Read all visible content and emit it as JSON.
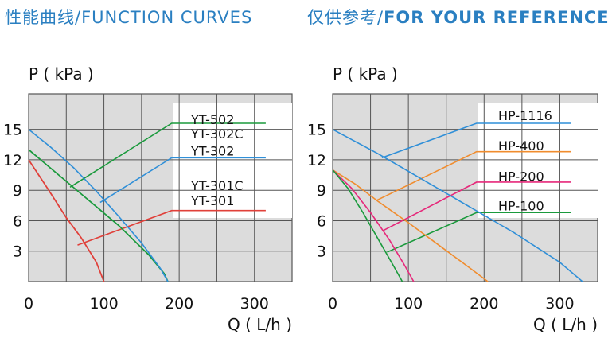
{
  "headers": {
    "left": {
      "cn": "性能曲线/",
      "en": "FUNCTION CURVES"
    },
    "right": {
      "cn": "仅供参考/",
      "en": "FOR YOUR REFERENCE"
    }
  },
  "colors": {
    "panel_bg": "#dcdcdc",
    "grid": "#555555",
    "header": "#2a7fc1"
  },
  "chart_data": [
    {
      "type": "line",
      "ylabel": "P ( kPa )",
      "xlabel": "Q ( L/h )",
      "xlim": [
        0,
        350
      ],
      "ylim": [
        0,
        18.5
      ],
      "xticks": [
        0,
        100,
        200,
        300
      ],
      "yticks": [
        3,
        6,
        9,
        12,
        15
      ],
      "grid": true,
      "series": [
        {
          "name": "YT-502",
          "color": "#1a9a3c",
          "points": [
            [
              0,
              13
            ],
            [
              40,
              10.5
            ],
            [
              80,
              8
            ],
            [
              120,
              5.5
            ],
            [
              160,
              2.6
            ],
            [
              180,
              0.8
            ],
            [
              185,
              0
            ]
          ],
          "label_y": 16.0
        },
        {
          "name": "YT-302C",
          "color": "#1a9a3c",
          "points": [
            [
              0,
              13
            ],
            [
              40,
              10.5
            ],
            [
              80,
              8
            ],
            [
              120,
              5.5
            ],
            [
              160,
              2.6
            ],
            [
              180,
              0.8
            ],
            [
              185,
              0
            ]
          ],
          "label_y": 14.6
        },
        {
          "name": "YT-302",
          "color": "#2f8fd8",
          "points": [
            [
              0,
              15
            ],
            [
              30,
              13.2
            ],
            [
              60,
              11.2
            ],
            [
              90,
              8.9
            ],
            [
              120,
              6.4
            ],
            [
              150,
              3.8
            ],
            [
              175,
              1.3
            ],
            [
              185,
              0
            ]
          ],
          "label_y": 12.9
        },
        {
          "name": "YT-301C",
          "color": "#e0403a",
          "points": [
            [
              0,
              12
            ],
            [
              25,
              9.2
            ],
            [
              50,
              6.3
            ],
            [
              70,
              4.3
            ],
            [
              90,
              1.9
            ],
            [
              100,
              0
            ]
          ],
          "label_y": 9.5
        },
        {
          "name": "YT-301",
          "color": "#e0403a",
          "points": [
            [
              0,
              12
            ],
            [
              25,
              9.2
            ],
            [
              50,
              6.3
            ],
            [
              70,
              4.3
            ],
            [
              90,
              1.9
            ],
            [
              100,
              0
            ]
          ],
          "label_y": 8.0
        }
      ],
      "leaders": [
        {
          "color": "#1a9a3c",
          "from": [
            55,
            9.3
          ],
          "elbow": [
            190,
            15.6
          ],
          "to": [
            315,
            15.6
          ]
        },
        {
          "color": "#2f8fd8",
          "from": [
            95,
            7.8
          ],
          "elbow": [
            190,
            12.2
          ],
          "to": [
            315,
            12.2
          ]
        },
        {
          "color": "#e0403a",
          "from": [
            65,
            3.6
          ],
          "elbow": [
            190,
            7.0
          ],
          "to": [
            315,
            7.0
          ]
        }
      ]
    },
    {
      "type": "line",
      "ylabel": "P ( kPa )",
      "xlabel": "Q ( L/h )",
      "xlim": [
        0,
        350
      ],
      "ylim": [
        0,
        18.5
      ],
      "xticks": [
        0,
        100,
        200,
        300
      ],
      "yticks": [
        3,
        6,
        9,
        12,
        15
      ],
      "grid": true,
      "series": [
        {
          "name": "HP-1116",
          "color": "#2f8fd8",
          "points": [
            [
              0,
              15
            ],
            [
              60,
              12.6
            ],
            [
              120,
              10
            ],
            [
              180,
              7.4
            ],
            [
              240,
              4.8
            ],
            [
              300,
              1.9
            ],
            [
              330,
              0
            ]
          ],
          "label_y": 16.4
        },
        {
          "name": "HP-400",
          "color": "#f08c2e",
          "points": [
            [
              0,
              11
            ],
            [
              30,
              9.6
            ],
            [
              60,
              7.9
            ],
            [
              100,
              5.8
            ],
            [
              140,
              3.6
            ],
            [
              180,
              1.4
            ],
            [
              205,
              0
            ]
          ],
          "label_y": 13.4
        },
        {
          "name": "HP-200",
          "color": "#e6287a",
          "points": [
            [
              0,
              11
            ],
            [
              25,
              9.2
            ],
            [
              50,
              6.8
            ],
            [
              75,
              4.1
            ],
            [
              95,
              1.6
            ],
            [
              107,
              0
            ]
          ],
          "label_y": 10.4
        },
        {
          "name": "HP-100",
          "color": "#1a9a3c",
          "points": [
            [
              0,
              11
            ],
            [
              20,
              9.2
            ],
            [
              40,
              6.8
            ],
            [
              60,
              4.2
            ],
            [
              80,
              1.6
            ],
            [
              92,
              0
            ]
          ],
          "label_y": 7.5
        }
      ],
      "leaders": [
        {
          "color": "#2f8fd8",
          "from": [
            65,
            12.2
          ],
          "elbow": [
            190,
            15.6
          ],
          "to": [
            315,
            15.6
          ]
        },
        {
          "color": "#f08c2e",
          "from": [
            58,
            8.0
          ],
          "elbow": [
            190,
            12.8
          ],
          "to": [
            315,
            12.8
          ]
        },
        {
          "color": "#e6287a",
          "from": [
            66,
            5.0
          ],
          "elbow": [
            190,
            9.8
          ],
          "to": [
            315,
            9.8
          ]
        },
        {
          "color": "#1a9a3c",
          "from": [
            72,
            2.9
          ],
          "elbow": [
            190,
            6.8
          ],
          "to": [
            315,
            6.8
          ]
        }
      ]
    }
  ]
}
